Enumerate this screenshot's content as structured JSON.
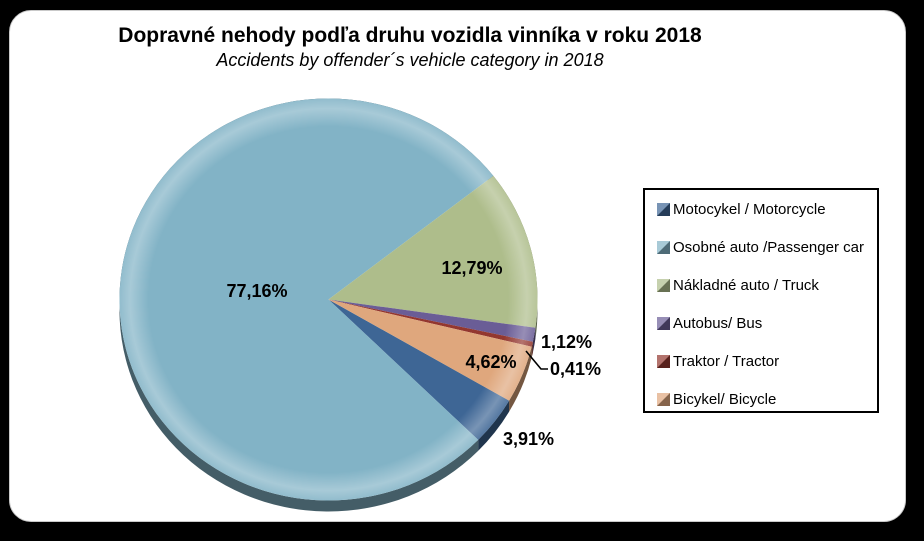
{
  "title": "Dopravné nehody podľa druhu vozidla vinníka v roku 2018",
  "subtitle": "Accidents by offender´s vehicle category in 2018",
  "frame": {
    "background": "#000000",
    "panel_background": "#ffffff",
    "legend_border": "#000000"
  },
  "chart_data": {
    "type": "pie",
    "title": "Dopravné nehody podľa druhu vozidla vinníka v roku 2018",
    "subtitle": "Accidents by offender´s vehicle category in 2018",
    "unit": "%",
    "direction": "clockwise",
    "start_angle_deg": 120.2,
    "legend_position": "right",
    "effect": "3d-bevel",
    "slices": [
      {
        "label": "Motocykel / Motorcycle",
        "value": 3.91,
        "display": "3,91%",
        "color": "#3E6695",
        "label_placement": "outside"
      },
      {
        "label": "Osobné auto /Passenger car",
        "value": 77.16,
        "display": "77,16%",
        "color": "#82B3C6",
        "label_placement": "inside"
      },
      {
        "label": "Nákladné auto / Truck",
        "value": 12.79,
        "display": "12,79%",
        "color": "#AEBD8B",
        "label_placement": "inside"
      },
      {
        "label": "Autobus/ Bus",
        "value": 1.12,
        "display": "1,12%",
        "color": "#6A5D96",
        "label_placement": "outside"
      },
      {
        "label": "Traktor / Tractor",
        "value": 0.41,
        "display": "0,41%",
        "color": "#93372F",
        "label_placement": "outside-with-leader"
      },
      {
        "label": "Bicykel/ Bicycle",
        "value": 4.62,
        "display": "4,62%",
        "color": "#DFA77D",
        "label_placement": "inside"
      }
    ]
  }
}
